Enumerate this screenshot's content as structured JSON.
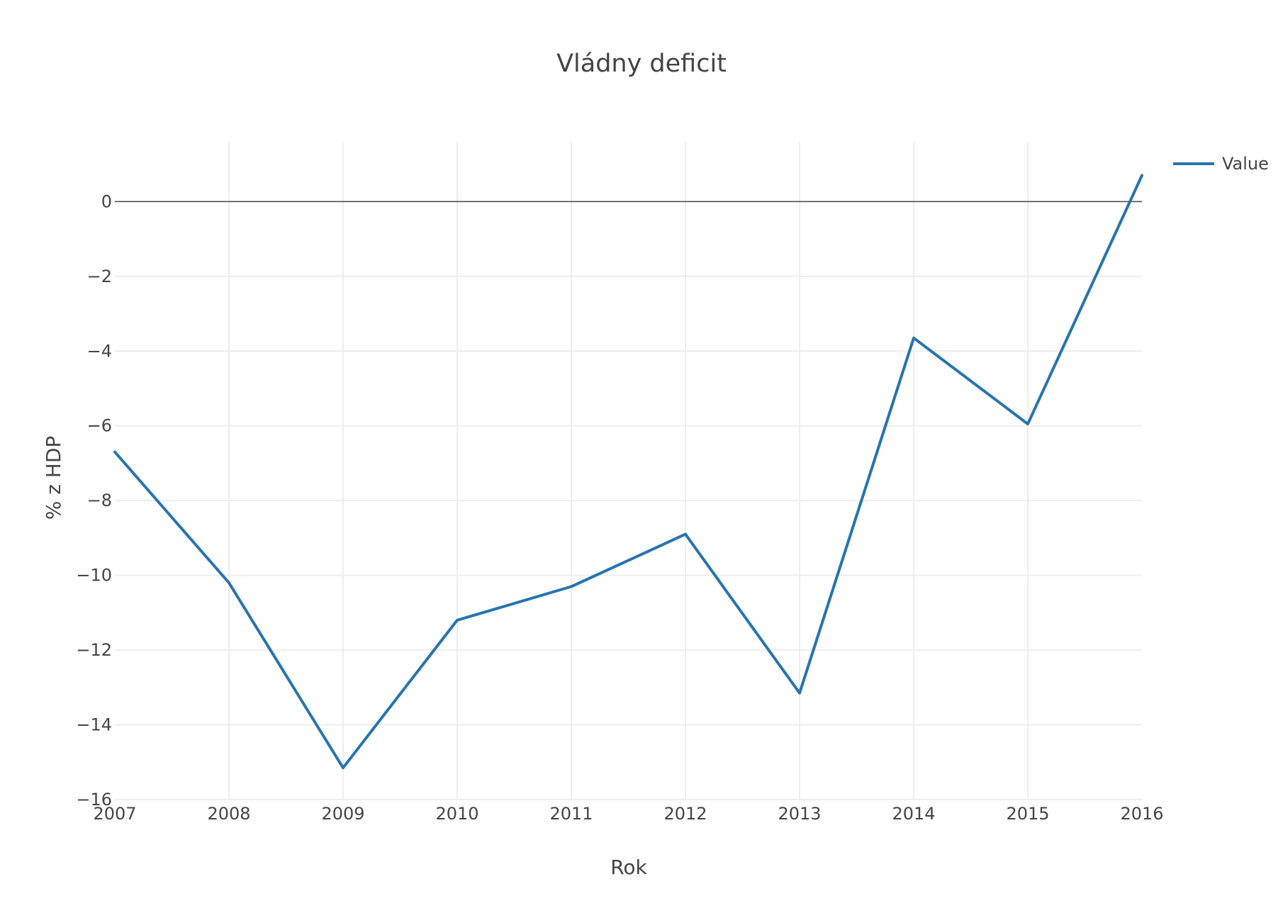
{
  "chart_data": {
    "type": "line",
    "title": "Vládny deficit",
    "xlabel": "Rok",
    "ylabel": "% z HDP",
    "x": [
      2007,
      2008,
      2009,
      2010,
      2011,
      2012,
      2013,
      2014,
      2015,
      2016
    ],
    "x_tick_labels": [
      "2007",
      "2008",
      "2009",
      "2010",
      "2011",
      "2012",
      "2013",
      "2014",
      "2015",
      "2016"
    ],
    "y_ticks": [
      0,
      -2,
      -4,
      -6,
      -8,
      -10,
      -12,
      -14,
      -16
    ],
    "y_tick_labels": [
      "0",
      "−2",
      "−4",
      "−6",
      "−8",
      "−10",
      "−12",
      "−14",
      "−16"
    ],
    "xlim": [
      2007,
      2016
    ],
    "ylim": [
      -16,
      1.6
    ],
    "grid": true,
    "zero_line": true,
    "legend_placement": "top-right",
    "series": [
      {
        "name": "Value",
        "color": "#2874ad",
        "values": [
          -6.7,
          -10.2,
          -15.15,
          -11.2,
          -10.3,
          -8.9,
          -13.15,
          -3.65,
          -5.95,
          0.7
        ]
      }
    ]
  }
}
